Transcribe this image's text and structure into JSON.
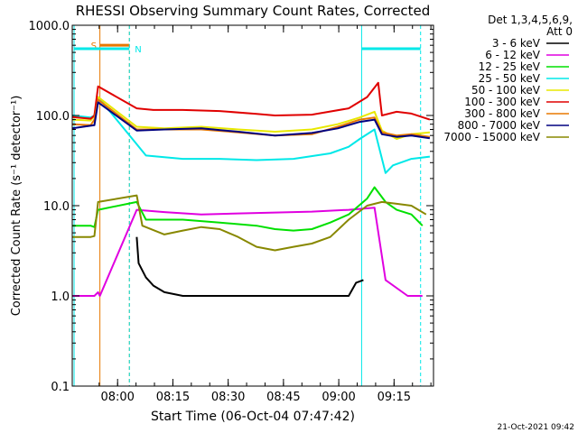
{
  "chart_data": {
    "type": "line",
    "title": "RHESSI Observing Summary Count Rates, Corrected",
    "xlabel": "Start Time (06-Oct-04 07:47:42)",
    "ylabel": "Corrected Count Rate (s⁻¹ detector⁻¹)",
    "x_unit": "minutes since 07:47:42",
    "xlim": [
      0,
      98
    ],
    "ylim": [
      0.1,
      1000
    ],
    "y_scale": "log",
    "y_ticks": [
      {
        "value": 1000,
        "label": "1000.0"
      },
      {
        "value": 100,
        "label": "100.0"
      },
      {
        "value": 10,
        "label": "10.0"
      },
      {
        "value": 1,
        "label": "1.0"
      },
      {
        "value": 0.1,
        "label": "0.1"
      }
    ],
    "x_ticks": [
      {
        "value": 12.3,
        "label": "08:00"
      },
      {
        "value": 27.3,
        "label": "08:15"
      },
      {
        "value": 42.3,
        "label": "08:30"
      },
      {
        "value": 57.3,
        "label": "08:45"
      },
      {
        "value": 72.3,
        "label": "09:00"
      },
      {
        "value": 87.3,
        "label": "09:15"
      }
    ],
    "legend": {
      "header_line1": "Det 1,3,4,5,6,9,",
      "header_line2": "Att 0",
      "placement": "right"
    },
    "series": [
      {
        "name": "3 - 6 keV",
        "color": "#000000",
        "points": [
          [
            17.5,
            4.5
          ],
          [
            18,
            2.3
          ],
          [
            20,
            1.6
          ],
          [
            22,
            1.3
          ],
          [
            25,
            1.1
          ],
          [
            30,
            1.0
          ],
          [
            50,
            1.0
          ],
          [
            75,
            1.0
          ],
          [
            77,
            1.4
          ],
          [
            79,
            1.5
          ]
        ]
      },
      {
        "name": "6 - 12 keV",
        "color": "#e000e0",
        "points": [
          [
            0,
            1.0
          ],
          [
            6,
            1.0
          ],
          [
            7,
            1.1
          ],
          [
            7.5,
            1.0
          ],
          [
            17.5,
            9
          ],
          [
            25,
            8.5
          ],
          [
            35,
            8
          ],
          [
            45,
            8.2
          ],
          [
            55,
            8.4
          ],
          [
            65,
            8.6
          ],
          [
            75,
            9
          ],
          [
            82,
            9.5
          ],
          [
            85,
            1.5
          ],
          [
            91,
            1.0
          ],
          [
            95,
            1.0
          ]
        ]
      },
      {
        "name": "12 - 25 keV",
        "color": "#00e000",
        "points": [
          [
            0,
            6
          ],
          [
            5,
            6
          ],
          [
            6,
            5.8
          ],
          [
            7,
            9
          ],
          [
            17.5,
            11
          ],
          [
            20,
            7
          ],
          [
            30,
            7
          ],
          [
            40,
            6.5
          ],
          [
            50,
            6
          ],
          [
            55,
            5.5
          ],
          [
            60,
            5.3
          ],
          [
            65,
            5.5
          ],
          [
            70,
            6.5
          ],
          [
            75,
            8
          ],
          [
            80,
            12
          ],
          [
            82,
            16
          ],
          [
            85,
            11
          ],
          [
            88,
            9
          ],
          [
            92,
            8
          ],
          [
            95,
            6
          ]
        ]
      },
      {
        "name": "25 - 50 keV",
        "color": "#00e8e8",
        "points": [
          [
            0,
            100
          ],
          [
            5,
            95
          ],
          [
            6,
            100
          ],
          [
            7,
            160
          ],
          [
            17.5,
            48
          ],
          [
            20,
            36
          ],
          [
            30,
            33
          ],
          [
            40,
            33
          ],
          [
            50,
            32
          ],
          [
            60,
            33
          ],
          [
            70,
            38
          ],
          [
            75,
            45
          ],
          [
            78,
            55
          ],
          [
            82,
            70
          ],
          [
            85,
            23
          ],
          [
            87,
            28
          ],
          [
            92,
            33
          ],
          [
            97,
            35
          ]
        ]
      },
      {
        "name": "50 - 100 keV",
        "color": "#e8e800",
        "points": [
          [
            0,
            90
          ],
          [
            5,
            88
          ],
          [
            6,
            100
          ],
          [
            7,
            160
          ],
          [
            17.5,
            75
          ],
          [
            25,
            72
          ],
          [
            35,
            75
          ],
          [
            45,
            70
          ],
          [
            55,
            66
          ],
          [
            65,
            70
          ],
          [
            72,
            80
          ],
          [
            78,
            95
          ],
          [
            82,
            110
          ],
          [
            84,
            68
          ],
          [
            88,
            55
          ],
          [
            92,
            62
          ],
          [
            97,
            65
          ]
        ]
      },
      {
        "name": "100 - 300 keV",
        "color": "#e00000",
        "points": [
          [
            0,
            96
          ],
          [
            5,
            92
          ],
          [
            6,
            100
          ],
          [
            7,
            210
          ],
          [
            17.5,
            120
          ],
          [
            22,
            115
          ],
          [
            30,
            115
          ],
          [
            40,
            112
          ],
          [
            50,
            104
          ],
          [
            55,
            100
          ],
          [
            65,
            102
          ],
          [
            75,
            120
          ],
          [
            80,
            160
          ],
          [
            83,
            230
          ],
          [
            84,
            100
          ],
          [
            88,
            110
          ],
          [
            92,
            105
          ],
          [
            97,
            90
          ]
        ]
      },
      {
        "name": "300 - 800 keV",
        "color": "#e87800",
        "points": [
          [
            0,
            80
          ],
          [
            5,
            78
          ],
          [
            6,
            90
          ],
          [
            7,
            150
          ],
          [
            17.5,
            70
          ],
          [
            25,
            70
          ],
          [
            35,
            70
          ],
          [
            45,
            65
          ],
          [
            55,
            60
          ],
          [
            65,
            62
          ],
          [
            72,
            75
          ],
          [
            78,
            90
          ],
          [
            82,
            95
          ],
          [
            84,
            65
          ],
          [
            88,
            60
          ],
          [
            92,
            62
          ],
          [
            97,
            58
          ]
        ]
      },
      {
        "name": "800 - 7000 keV",
        "color": "#000080",
        "points": [
          [
            0,
            72
          ],
          [
            6,
            78
          ],
          [
            7,
            140
          ],
          [
            17.5,
            68
          ],
          [
            25,
            70
          ],
          [
            35,
            72
          ],
          [
            45,
            66
          ],
          [
            55,
            60
          ],
          [
            65,
            64
          ],
          [
            72,
            72
          ],
          [
            78,
            85
          ],
          [
            82,
            90
          ],
          [
            84,
            62
          ],
          [
            88,
            58
          ],
          [
            92,
            60
          ],
          [
            97,
            56
          ]
        ]
      },
      {
        "name": "7000 - 15000 keV",
        "color": "#888800",
        "points": [
          [
            0,
            4.5
          ],
          [
            5,
            4.5
          ],
          [
            6,
            4.6
          ],
          [
            7,
            11
          ],
          [
            17.5,
            13
          ],
          [
            19,
            6
          ],
          [
            25,
            4.8
          ],
          [
            30,
            5.3
          ],
          [
            35,
            5.8
          ],
          [
            40,
            5.5
          ],
          [
            45,
            4.5
          ],
          [
            50,
            3.5
          ],
          [
            55,
            3.2
          ],
          [
            60,
            3.5
          ],
          [
            65,
            3.8
          ],
          [
            70,
            4.5
          ],
          [
            75,
            7
          ],
          [
            80,
            10
          ],
          [
            84,
            11
          ],
          [
            88,
            10.5
          ],
          [
            92,
            10
          ],
          [
            96,
            8
          ]
        ]
      }
    ],
    "events": [
      {
        "label": "S",
        "type": "SAA",
        "color": "#e87800",
        "x_start": 7.5,
        "x_end": 15.5,
        "level": 600
      },
      {
        "label": "N",
        "type": "Night",
        "color": "#00e8e8",
        "x_start": 0.5,
        "x_end": 15.5,
        "level": 550
      },
      {
        "label": "",
        "type": "Night",
        "color": "#00e8e8",
        "x_start": 78.5,
        "x_end": 94.5,
        "level": 550
      }
    ],
    "attenuator_markers": [
      15.2,
      78.5,
      94.5
    ],
    "footer_date": "21-Oct-2021 09:42"
  }
}
